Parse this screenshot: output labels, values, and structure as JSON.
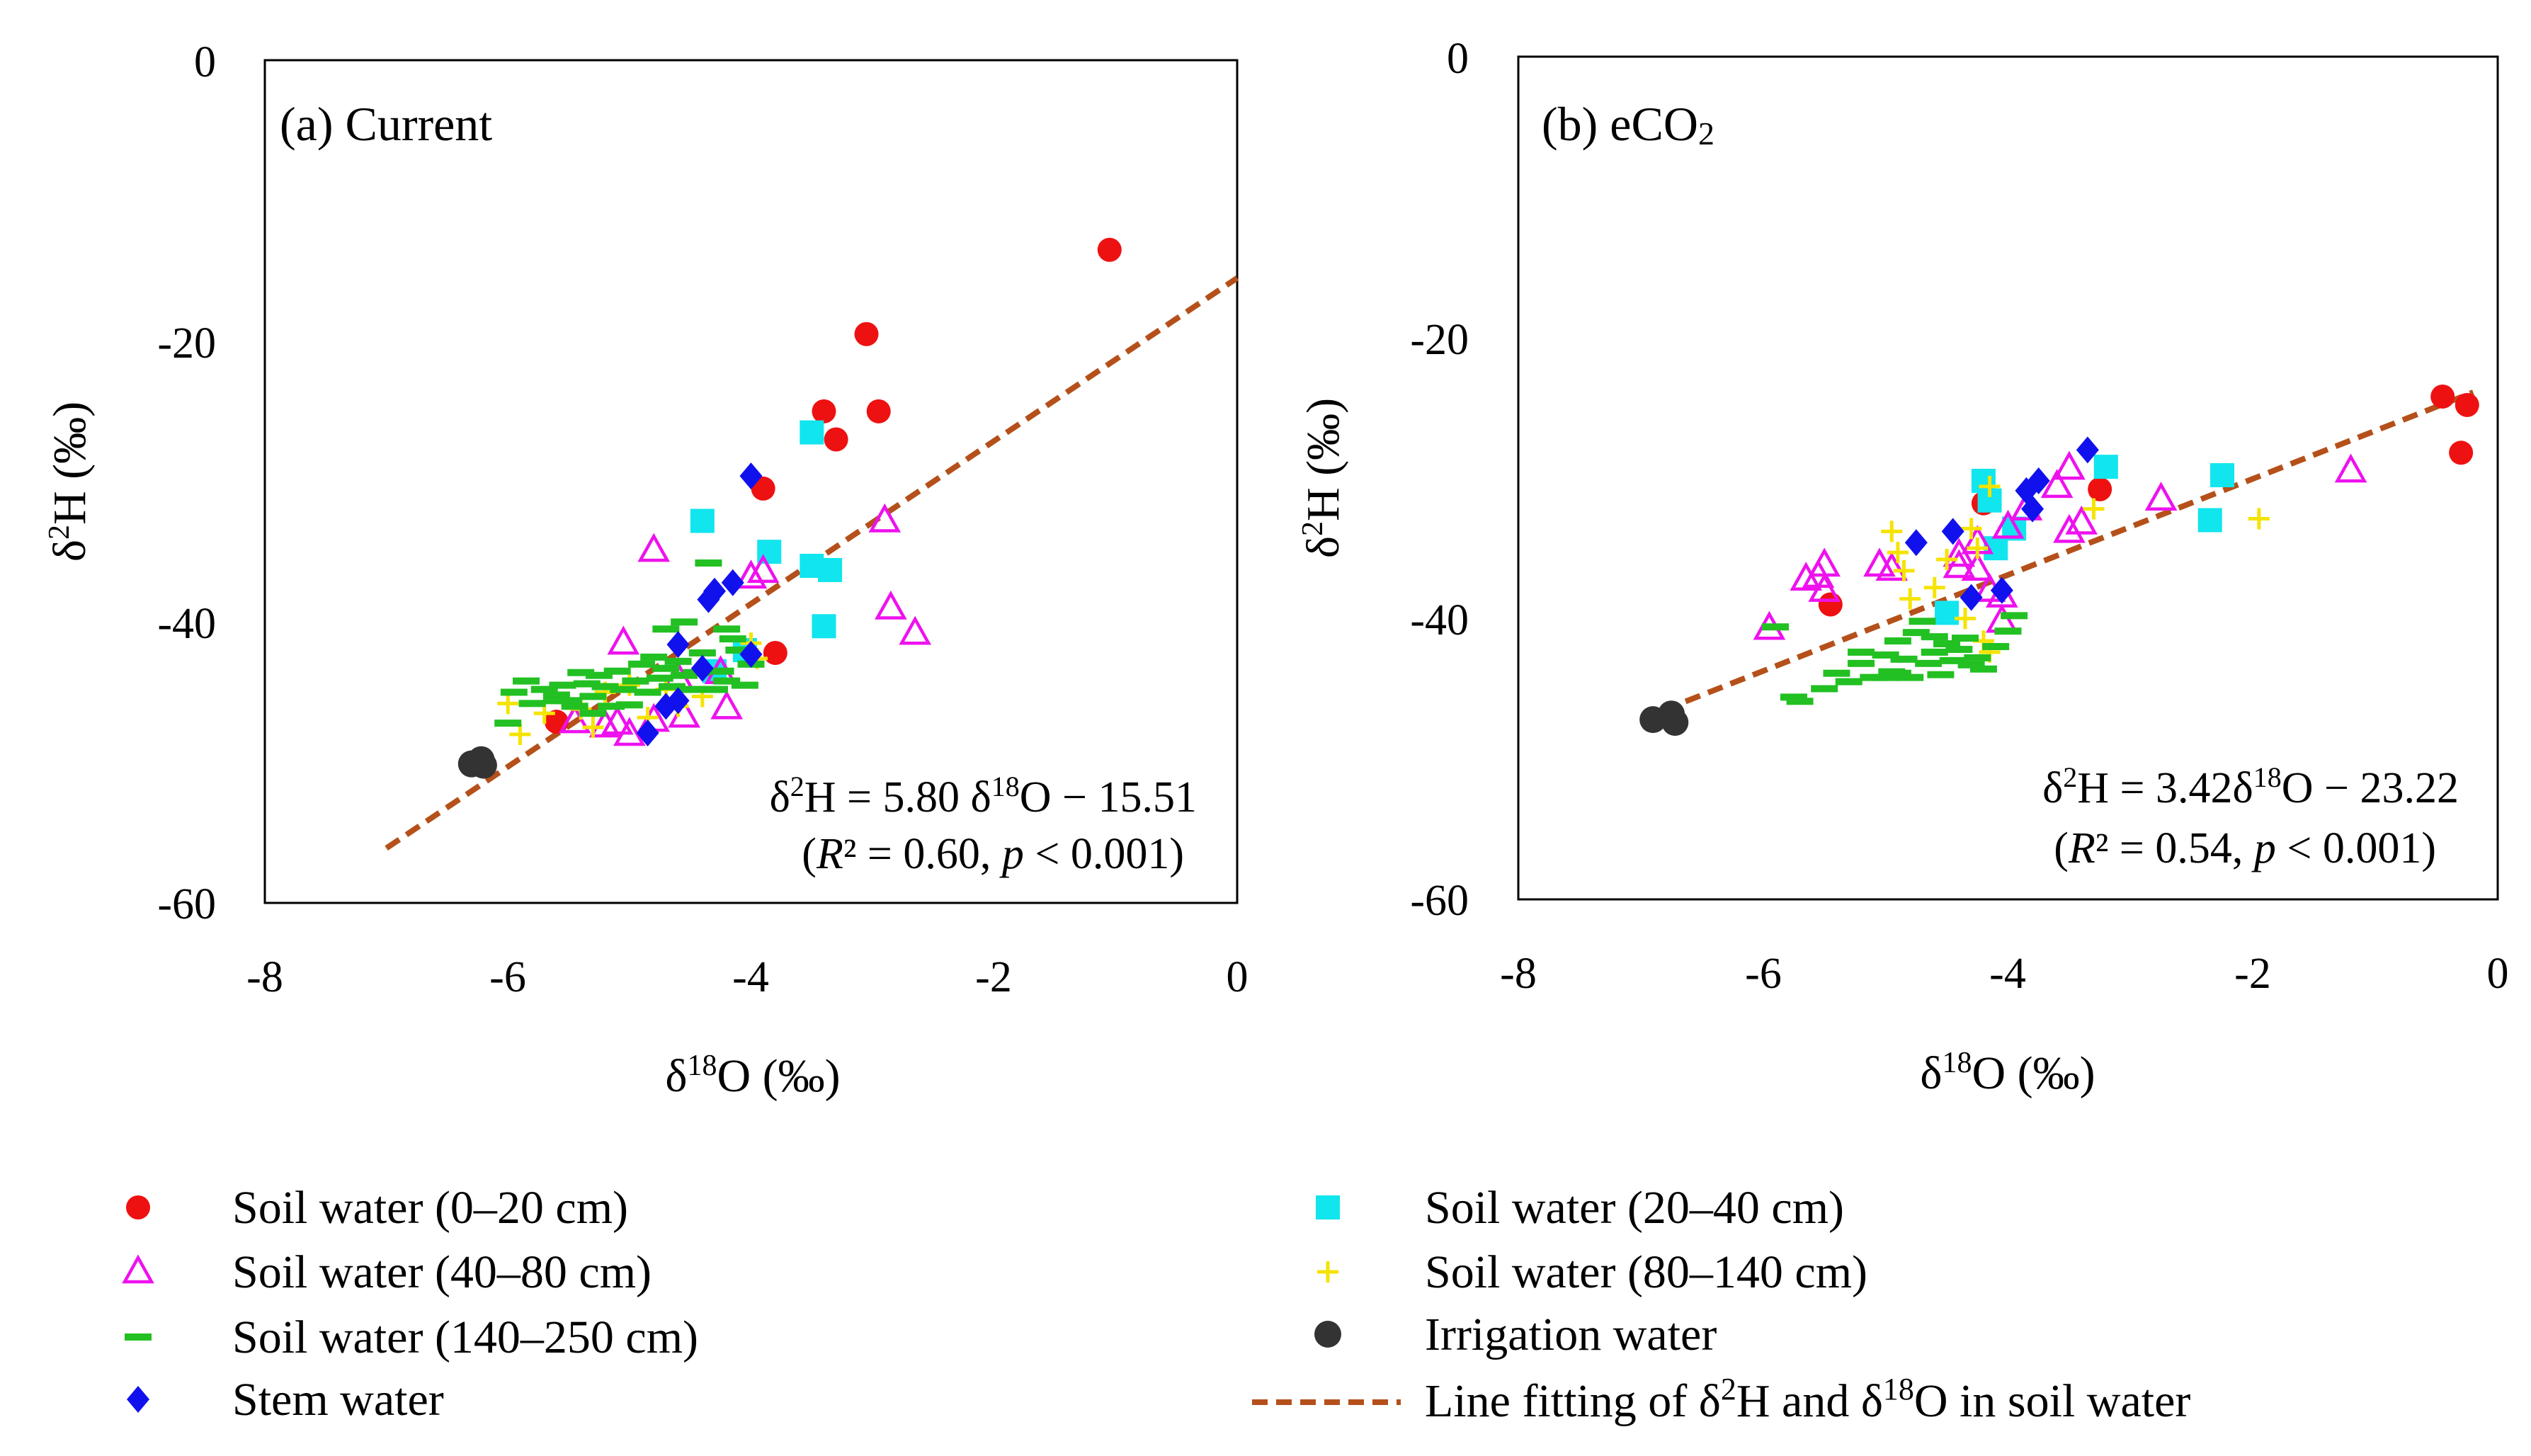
{
  "chart_data": [
    {
      "type": "scatter",
      "id": "a",
      "title": "(a) Current",
      "xlabel": "δ18O (‰)",
      "ylabel": "δ2H (‰)",
      "xlim": [
        -8,
        0
      ],
      "ylim": [
        -60,
        0
      ],
      "xticks": [
        "-8",
        "-6",
        "-4",
        "-2",
        "0"
      ],
      "yticks": [
        "0",
        "-20",
        "-40",
        "-60"
      ],
      "equation": "δ2H = 5.80 δ18O − 15.51",
      "stats": "(R² = 0.60, p < 0.001)",
      "fit_line": {
        "x": [
          -7.0,
          0.0
        ],
        "y": [
          -56.1,
          -15.51
        ]
      },
      "series": [
        {
          "name": "Soil water (0–20 cm)",
          "marker": "circle",
          "color": "#ee1111",
          "points": [
            [
              -1.05,
              -13.5
            ],
            [
              -3.05,
              -19.5
            ],
            [
              -3.4,
              -25
            ],
            [
              -2.95,
              -25
            ],
            [
              -3.3,
              -27
            ],
            [
              -3.9,
              -30.5
            ],
            [
              -3.8,
              -42.2
            ],
            [
              -5.6,
              -47.1
            ]
          ]
        },
        {
          "name": "Soil water (20–40 cm)",
          "marker": "square",
          "color": "#11e5ee",
          "points": [
            [
              -3.5,
              -26.5
            ],
            [
              -4.4,
              -32.8
            ],
            [
              -3.85,
              -35
            ],
            [
              -3.5,
              -36
            ],
            [
              -3.35,
              -36.3
            ],
            [
              -3.4,
              -40.3
            ],
            [
              -4.05,
              -42
            ],
            [
              -4.3,
              -43.5
            ]
          ]
        },
        {
          "name": "Soil water (40–80 cm)",
          "marker": "triangle",
          "color": "#ee11ee",
          "points": [
            [
              -2.9,
              -32.8
            ],
            [
              -2.85,
              -39
            ],
            [
              -2.65,
              -40.8
            ],
            [
              -4.8,
              -34.9
            ],
            [
              -3.9,
              -36.4
            ],
            [
              -4.0,
              -36.8
            ],
            [
              -5.05,
              -41.5
            ],
            [
              -4.25,
              -43.6
            ],
            [
              -4.2,
              -46.1
            ],
            [
              -4.6,
              -44
            ],
            [
              -4.55,
              -46.7
            ],
            [
              -4.8,
              -47
            ],
            [
              -5.2,
              -47.4
            ],
            [
              -5.45,
              -47.1
            ],
            [
              -5.0,
              -48
            ],
            [
              -5.1,
              -47.2
            ]
          ]
        },
        {
          "name": "Soil water (80–140 cm)",
          "marker": "plus",
          "color": "#f5e300",
          "points": [
            [
              -6.0,
              -45.8
            ],
            [
              -5.9,
              -48
            ],
            [
              -5.7,
              -46.5
            ],
            [
              -5.4,
              -46.2
            ],
            [
              -5.2,
              -45
            ],
            [
              -5.0,
              -44.5
            ],
            [
              -4.85,
              -46.8
            ],
            [
              -4.7,
              -44.8
            ],
            [
              -4.6,
              -46
            ],
            [
              -4.4,
              -45.3
            ],
            [
              -3.95,
              -42.6
            ],
            [
              -4.0,
              -41.5
            ],
            [
              -5.3,
              -47.5
            ]
          ]
        },
        {
          "name": "Soil water (140–250 cm)",
          "marker": "dash",
          "color": "#22c022",
          "points": [
            [
              -6.0,
              -47.2
            ],
            [
              -5.95,
              -45
            ],
            [
              -5.85,
              -44.2
            ],
            [
              -5.8,
              -45.8
            ],
            [
              -5.7,
              -44.8
            ],
            [
              -5.6,
              -45.2
            ],
            [
              -5.55,
              -44.5
            ],
            [
              -5.5,
              -45.6
            ],
            [
              -5.45,
              -46
            ],
            [
              -5.4,
              -43.6
            ],
            [
              -5.35,
              -44.4
            ],
            [
              -5.3,
              -45.3
            ],
            [
              -5.25,
              -43.8
            ],
            [
              -5.2,
              -44.6
            ],
            [
              -5.15,
              -46
            ],
            [
              -5.1,
              -43.5
            ],
            [
              -5.05,
              -44.8
            ],
            [
              -5.0,
              -45.9
            ],
            [
              -4.95,
              -44.2
            ],
            [
              -4.9,
              -43
            ],
            [
              -4.85,
              -45
            ],
            [
              -4.8,
              -42.5
            ],
            [
              -4.75,
              -44
            ],
            [
              -4.7,
              -43.3
            ],
            [
              -4.65,
              -44.6
            ],
            [
              -4.6,
              -42.8
            ],
            [
              -4.55,
              -43.8
            ],
            [
              -4.5,
              -44.8
            ],
            [
              -4.45,
              -43.6
            ],
            [
              -4.4,
              -42.2
            ],
            [
              -4.35,
              -35.8
            ],
            [
              -4.2,
              -40.5
            ],
            [
              -4.15,
              -41.2
            ],
            [
              -4.1,
              -42
            ],
            [
              -4.3,
              -44.8
            ],
            [
              -4.25,
              -43.5
            ],
            [
              -4.2,
              -44.2
            ],
            [
              -4.0,
              -43
            ],
            [
              -4.05,
              -44.5
            ],
            [
              -4.55,
              -40
            ],
            [
              -4.7,
              -40.5
            ],
            [
              -5.3,
              -46.5
            ],
            [
              -5.6,
              -45.6
            ]
          ]
        },
        {
          "name": "Stem water",
          "marker": "diamond",
          "color": "#1111ee",
          "points": [
            [
              -4.0,
              -29.6
            ],
            [
              -4.15,
              -37.2
            ],
            [
              -4.3,
              -37.8
            ],
            [
              -4.35,
              -38.4
            ],
            [
              -4.6,
              -41.6
            ],
            [
              -4.0,
              -42.3
            ],
            [
              -4.4,
              -43.3
            ],
            [
              -4.6,
              -45.6
            ],
            [
              -4.85,
              -47.9
            ],
            [
              -4.7,
              -46
            ]
          ]
        },
        {
          "name": "Irrigation water",
          "marker": "bigcircle",
          "color": "#333333",
          "points": [
            [
              -6.3,
              -50.1
            ],
            [
              -6.22,
              -49.8
            ],
            [
              -6.2,
              -50.2
            ]
          ]
        }
      ]
    },
    {
      "type": "scatter",
      "id": "b",
      "title_main": "(b) eCO",
      "title_sub": "2",
      "xlabel": "δ18O (‰)",
      "ylabel": "δ2H (‰)",
      "xlim": [
        -8,
        0
      ],
      "ylim": [
        -60,
        0
      ],
      "xticks": [
        "-8",
        "-6",
        "-4",
        "-2",
        "0"
      ],
      "yticks": [
        "0",
        "-20",
        "-40",
        "-60"
      ],
      "equation": "δ2H = 3.42δ18O − 23.22",
      "stats": "(R² = 0.54, p < 0.001)",
      "fit_line": {
        "x": [
          -7.0,
          -0.2
        ],
        "y": [
          -47.16,
          -23.9
        ]
      },
      "series": [
        {
          "name": "Soil water (0–20 cm)",
          "marker": "circle",
          "color": "#ee1111",
          "points": [
            [
              -0.45,
              -24.2
            ],
            [
              -0.25,
              -24.8
            ],
            [
              -0.3,
              -28.2
            ],
            [
              -3.25,
              -30.8
            ],
            [
              -4.2,
              -31.8
            ],
            [
              -5.45,
              -39
            ]
          ]
        },
        {
          "name": "Soil water (20–40 cm)",
          "marker": "square",
          "color": "#11e5ee",
          "points": [
            [
              -4.2,
              -30.2
            ],
            [
              -4.15,
              -31.6
            ],
            [
              -3.2,
              -29.2
            ],
            [
              -2.25,
              -29.8
            ],
            [
              -2.35,
              -33
            ],
            [
              -3.95,
              -33.6
            ],
            [
              -4.1,
              -35
            ],
            [
              -4.5,
              -39.6
            ]
          ]
        },
        {
          "name": "Soil water (40–80 cm)",
          "marker": "triangle",
          "color": "#ee11ee",
          "points": [
            [
              -1.2,
              -29.5
            ],
            [
              -2.75,
              -31.5
            ],
            [
              -3.5,
              -29.3
            ],
            [
              -3.6,
              -30.6
            ],
            [
              -3.4,
              -33.2
            ],
            [
              -3.5,
              -33.8
            ],
            [
              -3.85,
              -32.2
            ],
            [
              -4.0,
              -33.5
            ],
            [
              -4.25,
              -34.6
            ],
            [
              -4.4,
              -35.5
            ],
            [
              -4.25,
              -36.5
            ],
            [
              -4.15,
              -38
            ],
            [
              -4.05,
              -38.4
            ],
            [
              -4.05,
              -40.2
            ],
            [
              -4.95,
              -36.5
            ],
            [
              -5.05,
              -36.2
            ],
            [
              -5.5,
              -36.2
            ],
            [
              -5.55,
              -37
            ],
            [
              -5.65,
              -37.2
            ],
            [
              -5.5,
              -38
            ],
            [
              -5.95,
              -40.7
            ],
            [
              -4.4,
              -36.3
            ]
          ]
        },
        {
          "name": "Soil water (80–140 cm)",
          "marker": "plus",
          "color": "#f5e300",
          "points": [
            [
              -1.95,
              -32.9
            ],
            [
              -3.3,
              -32.2
            ],
            [
              -4.15,
              -30.6
            ],
            [
              -4.3,
              -33.6
            ],
            [
              -4.25,
              -35
            ],
            [
              -4.5,
              -35.8
            ],
            [
              -4.9,
              -35.3
            ],
            [
              -4.85,
              -36.6
            ],
            [
              -4.6,
              -37.8
            ],
            [
              -4.8,
              -38.6
            ],
            [
              -4.35,
              -40
            ],
            [
              -4.2,
              -41.6
            ],
            [
              -4.15,
              -42.4
            ],
            [
              -4.95,
              -33.8
            ]
          ]
        },
        {
          "name": "Soil water (140–250 cm)",
          "marker": "dash",
          "color": "#22c022",
          "points": [
            [
              -5.9,
              -40.6
            ],
            [
              -5.75,
              -45.6
            ],
            [
              -5.7,
              -45.9
            ],
            [
              -5.5,
              -45
            ],
            [
              -5.4,
              -43.9
            ],
            [
              -5.3,
              -44.5
            ],
            [
              -5.2,
              -43.2
            ],
            [
              -5.1,
              -44.2
            ],
            [
              -5.0,
              -42.6
            ],
            [
              -4.95,
              -43.8
            ],
            [
              -4.9,
              -41.6
            ],
            [
              -4.85,
              -42.9
            ],
            [
              -4.8,
              -44.2
            ],
            [
              -4.75,
              -41
            ],
            [
              -4.7,
              -40.2
            ],
            [
              -4.65,
              -43.2
            ],
            [
              -4.6,
              -42.4
            ],
            [
              -4.55,
              -44
            ],
            [
              -4.5,
              -41.8
            ],
            [
              -4.45,
              -43
            ],
            [
              -4.4,
              -42.2
            ],
            [
              -4.35,
              -41.4
            ],
            [
              -4.3,
              -43.3
            ],
            [
              -4.25,
              -42.8
            ],
            [
              -4.2,
              -43.6
            ],
            [
              -4.1,
              -42
            ],
            [
              -4.0,
              -40.9
            ],
            [
              -3.95,
              -39.8
            ],
            [
              -5.0,
              -44.2
            ],
            [
              -5.2,
              -42.4
            ],
            [
              -4.9,
              -43.9
            ],
            [
              -4.6,
              -41.3
            ]
          ]
        },
        {
          "name": "Stem water",
          "marker": "diamond",
          "color": "#1111ee",
          "points": [
            [
              -3.35,
              -28
            ],
            [
              -3.75,
              -30.2
            ],
            [
              -3.85,
              -30.9
            ],
            [
              -3.8,
              -32.2
            ],
            [
              -4.45,
              -33.8
            ],
            [
              -4.75,
              -34.6
            ],
            [
              -4.05,
              -38
            ],
            [
              -4.3,
              -38.5
            ]
          ]
        },
        {
          "name": "Irrigation water",
          "marker": "bigcircle",
          "color": "#333333",
          "points": [
            [
              -6.9,
              -47.2
            ],
            [
              -6.75,
              -46.8
            ],
            [
              -6.72,
              -47.4
            ]
          ]
        }
      ]
    }
  ],
  "legend": {
    "items": [
      {
        "key": "s0",
        "marker": "circle",
        "color": "#ee1111",
        "label": "Soil water (0–20 cm)"
      },
      {
        "key": "s1",
        "marker": "triangle",
        "color": "#ee11ee",
        "label": "Soil water (40–80 cm)"
      },
      {
        "key": "s2",
        "marker": "dash",
        "color": "#22c022",
        "label": "Soil water (140–250 cm)"
      },
      {
        "key": "s3",
        "marker": "diamond",
        "color": "#1111ee",
        "label": "Stem water"
      },
      {
        "key": "s4",
        "marker": "square",
        "color": "#11e5ee",
        "label": "Soil water (20–40 cm)"
      },
      {
        "key": "s5",
        "marker": "plus",
        "color": "#f5e300",
        "label": "Soil water (80–140 cm)"
      },
      {
        "key": "s6",
        "marker": "bigcircle",
        "color": "#333333",
        "label": "Irrigation water"
      }
    ],
    "fit_label": "Line fitting of δ2H and δ18O in soil water",
    "fit_color": "#b5501a"
  }
}
